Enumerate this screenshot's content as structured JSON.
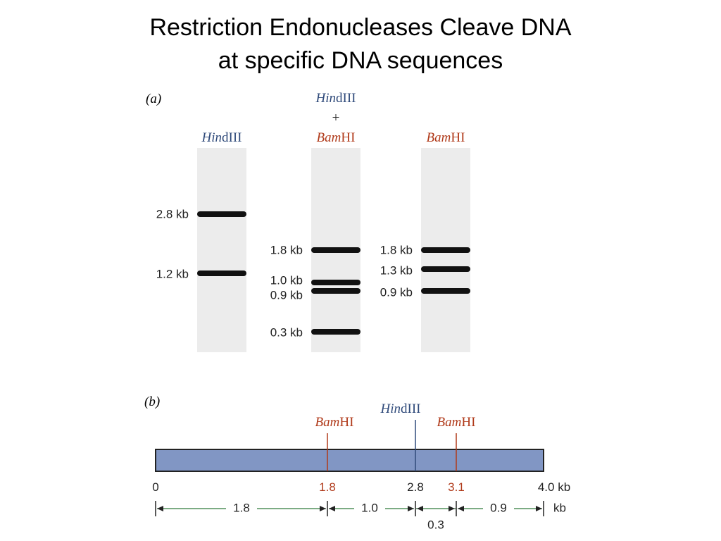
{
  "title": [
    "Restriction Endonucleases Cleave DNA",
    "at specific DNA sequences"
  ],
  "panel_a": {
    "label": "(a)",
    "lanes": [
      {
        "enzyme": [
          {
            "italic": "Hin",
            "rest": "dIII"
          }
        ],
        "bands": [
          "2.8 kb",
          "1.2 kb"
        ]
      },
      {
        "enzyme": [
          {
            "italic": "Hin",
            "rest": "dIII"
          },
          "+",
          {
            "italic": "Bam",
            "rest": "HI"
          }
        ],
        "bands": [
          "1.8 kb",
          "1.0 kb",
          "0.9 kb",
          "0.3 kb"
        ]
      },
      {
        "enzyme": [
          {
            "italic": "Bam",
            "rest": "HI"
          }
        ],
        "bands": [
          "1.8 kb",
          "1.3 kb",
          "0.9 kb"
        ]
      }
    ]
  },
  "panel_b": {
    "label": "(b)",
    "sites": [
      {
        "italic": "Bam",
        "rest": "HI"
      },
      {
        "italic": "Hin",
        "rest": "dIII"
      },
      {
        "italic": "Bam",
        "rest": "HI"
      }
    ],
    "scale": [
      "0",
      "1.8",
      "2.8",
      "3.1",
      "4.0 kb"
    ],
    "segments": [
      "1.8",
      "1.0",
      "0.3",
      "0.9"
    ],
    "unit": "kb"
  }
}
